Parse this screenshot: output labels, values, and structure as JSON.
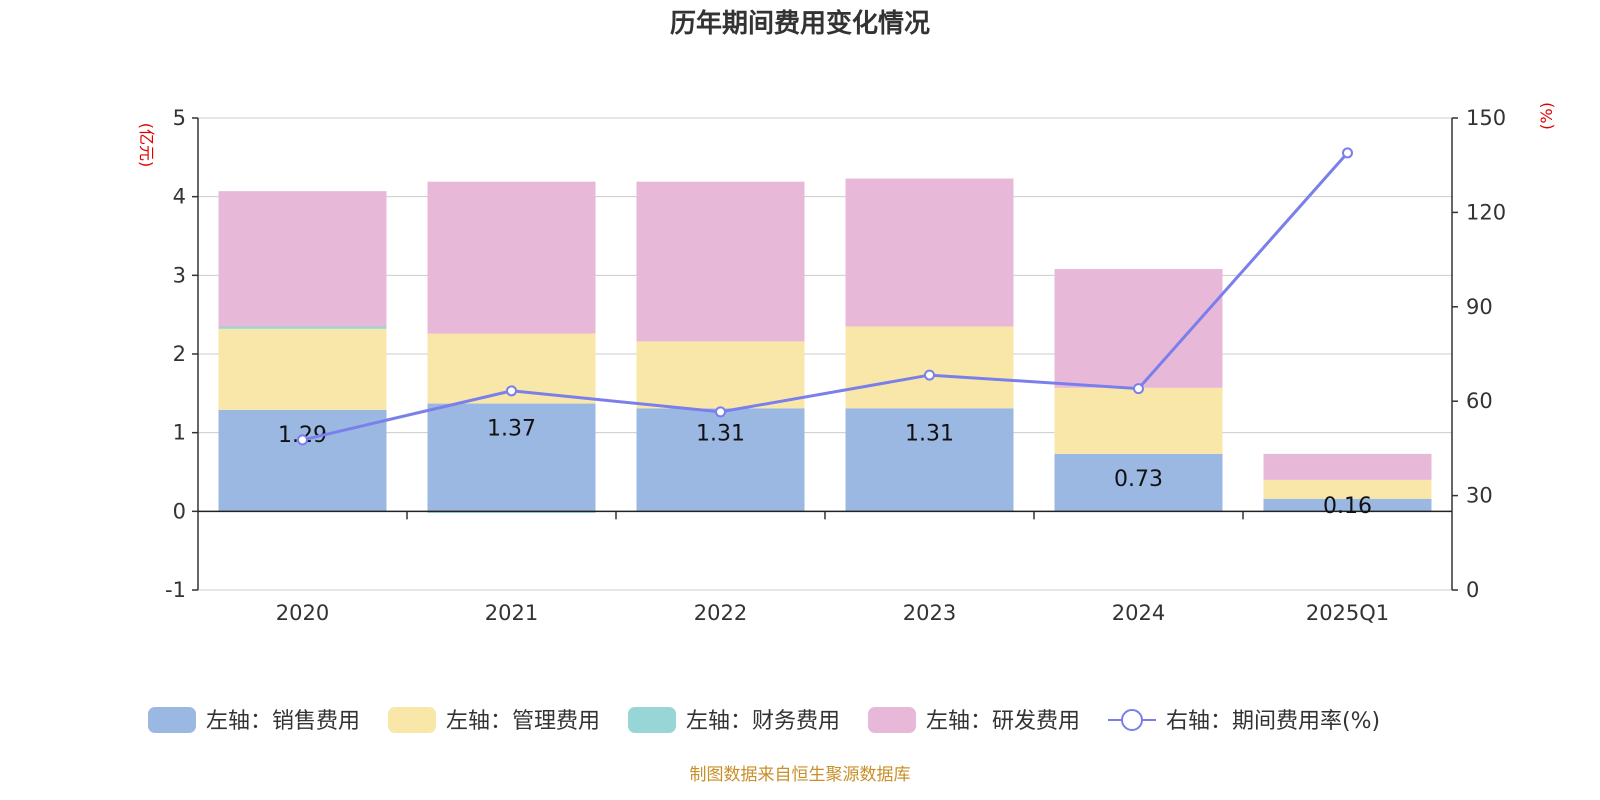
{
  "chart_data": {
    "type": "bar",
    "title": "历年期间费用变化情况",
    "categories": [
      "2020",
      "2021",
      "2022",
      "2023",
      "2024",
      "2025Q1"
    ],
    "left_axis": {
      "unit": "(亿元)",
      "ylim": [
        -1,
        5
      ],
      "ticks": [
        "-1",
        "0",
        "1",
        "2",
        "3",
        "4",
        "5"
      ]
    },
    "right_axis": {
      "unit": "(%)",
      "ylim": [
        0,
        150
      ],
      "ticks": [
        "0",
        "30",
        "60",
        "90",
        "120",
        "150"
      ]
    },
    "series": [
      {
        "name": "左轴：销售费用",
        "axis": "left",
        "color": "#9bb8e2",
        "values": [
          1.29,
          1.37,
          1.31,
          1.31,
          0.73,
          0.16
        ]
      },
      {
        "name": "左轴：管理费用",
        "axis": "left",
        "color": "#f8e7a8",
        "values": [
          1.03,
          0.89,
          0.85,
          1.04,
          0.84,
          0.24
        ]
      },
      {
        "name": "左轴：财务费用",
        "axis": "left",
        "color": "#98d5d6",
        "values": [
          0.03,
          -0.02,
          0.0,
          0.0,
          0.0,
          0.0
        ]
      },
      {
        "name": "左轴：研发费用",
        "axis": "left",
        "color": "#e8b8d9",
        "values": [
          1.72,
          1.93,
          2.03,
          1.88,
          1.51,
          0.33
        ]
      },
      {
        "name": "右轴：期间费用率(%)",
        "axis": "right",
        "type": "line",
        "color": "#7b7fea",
        "values": [
          47.7,
          63.3,
          56.6,
          68.3,
          64.0,
          138.9
        ]
      }
    ],
    "data_labels": [
      "1.29",
      "1.37",
      "1.31",
      "1.31",
      "0.73",
      "0.16"
    ],
    "source": "制图数据来自恒生聚源数据库"
  }
}
